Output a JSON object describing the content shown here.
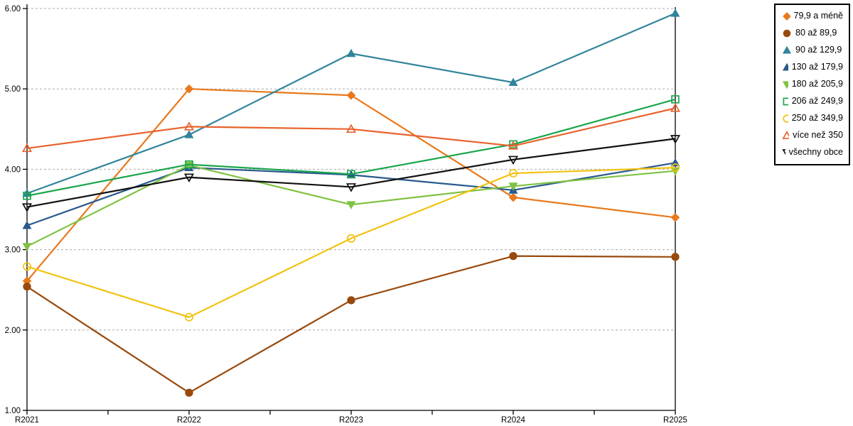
{
  "chart_data": {
    "type": "line",
    "title": "",
    "xlabel": "",
    "ylabel": "",
    "x_categories": [
      "R2021",
      "R2022",
      "R2023",
      "R2024",
      "R2025"
    ],
    "y_tick_labels": [
      "6.00",
      "5.00",
      "4.00",
      "3.00",
      "2.00",
      "1.00"
    ],
    "ylim": [
      1.0,
      6.0
    ],
    "grid": "horizontal dashed gray",
    "legend_position": "right",
    "series": [
      {
        "name": "79,9 a méně",
        "marker": "diamond",
        "style": "filled",
        "color": "#E8791C",
        "values": [
          2.61,
          5.0,
          4.92,
          3.65,
          3.4
        ]
      },
      {
        "name": "80 až 89,9",
        "marker": "circle",
        "style": "filled",
        "color": "#98490C",
        "values": [
          2.54,
          1.22,
          2.37,
          2.92,
          2.91
        ]
      },
      {
        "name": "90 až 129,9",
        "marker": "triangle-up",
        "style": "filled",
        "color": "#31849B",
        "values": [
          3.7,
          4.43,
          5.44,
          5.08,
          5.94
        ]
      },
      {
        "name": "130 až 179,9",
        "marker": "triangle-up",
        "style": "filled",
        "color": "#28598C",
        "values": [
          3.3,
          4.02,
          3.93,
          3.74,
          4.08
        ]
      },
      {
        "name": "180 až 205,9",
        "marker": "triangle-down",
        "style": "filled",
        "color": "#7FC241",
        "values": [
          3.04,
          4.05,
          3.56,
          3.79,
          3.98
        ]
      },
      {
        "name": "206 až 249,9",
        "marker": "square",
        "style": "open",
        "color": "#1BA64C",
        "values": [
          3.67,
          4.06,
          3.94,
          4.31,
          4.87
        ]
      },
      {
        "name": "250 až 349,9",
        "marker": "circle",
        "style": "open",
        "color": "#F2C211",
        "values": [
          2.79,
          2.16,
          3.14,
          3.95,
          4.02
        ]
      },
      {
        "name": "více než 350",
        "marker": "triangle-up",
        "style": "open",
        "color": "#E8632E",
        "values": [
          4.26,
          4.53,
          4.5,
          4.29,
          4.76
        ]
      },
      {
        "name": "všechny obce",
        "marker": "triangle-down",
        "style": "open",
        "color": "#111111",
        "values": [
          3.53,
          3.9,
          3.78,
          4.12,
          4.38
        ]
      }
    ]
  }
}
